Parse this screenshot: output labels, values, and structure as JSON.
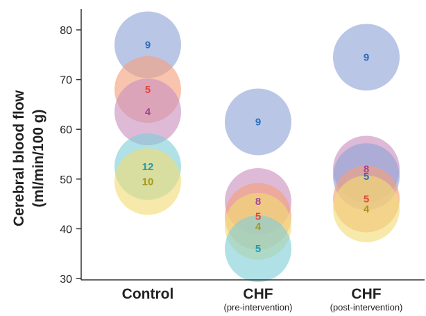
{
  "chart_data": {
    "type": "scatter",
    "title": "",
    "ylabel_line1": "Cerebral blood flow",
    "ylabel_line2": "(ml/min/100 g)",
    "ylim": [
      30,
      85
    ],
    "yticks": [
      30,
      40,
      50,
      60,
      70,
      80
    ],
    "grid": false,
    "categories": [
      {
        "label": "Control",
        "sublabel": ""
      },
      {
        "label": "CHF",
        "sublabel": "(pre-intervention)"
      },
      {
        "label": "CHF",
        "sublabel": "(post-intervention)"
      }
    ],
    "series": [
      {
        "group": "Control",
        "y": 77,
        "label": "9",
        "fill": "#8fa3d6",
        "text": "#2a6fc0"
      },
      {
        "group": "Control",
        "y": 68,
        "label": "5",
        "fill": "#f5a07a",
        "text": "#e2453a"
      },
      {
        "group": "Control",
        "y": 63.5,
        "label": "4",
        "fill": "#c98fbf",
        "text": "#a3439a"
      },
      {
        "group": "Control",
        "y": 52.5,
        "label": "12",
        "fill": "#7fcfd8",
        "text": "#1f9bab"
      },
      {
        "group": "Control",
        "y": 49.5,
        "label": "10",
        "fill": "#f1dc74",
        "text": "#a8951a"
      },
      {
        "group": "CHF (pre-intervention)",
        "y": 61.5,
        "label": "9",
        "fill": "#8fa3d6",
        "text": "#2a6fc0"
      },
      {
        "group": "CHF (pre-intervention)",
        "y": 45.5,
        "label": "8",
        "fill": "#c98fbf",
        "text": "#a3439a"
      },
      {
        "group": "CHF (pre-intervention)",
        "y": 42.5,
        "label": "5",
        "fill": "#f5a07a",
        "text": "#e2453a"
      },
      {
        "group": "CHF (pre-intervention)",
        "y": 40.5,
        "label": "4",
        "fill": "#f1dc74",
        "text": "#a8951a"
      },
      {
        "group": "CHF (pre-intervention)",
        "y": 36,
        "label": "5",
        "fill": "#7fcfd8",
        "text": "#1f9bab"
      },
      {
        "group": "CHF (post-intervention)",
        "y": 74.5,
        "label": "9",
        "fill": "#8fa3d6",
        "text": "#2a6fc0"
      },
      {
        "group": "CHF (post-intervention)",
        "y": 52,
        "label": "8",
        "fill": "#c98fbf",
        "text": "#a3439a"
      },
      {
        "group": "CHF (post-intervention)",
        "y": 50.5,
        "label": "5",
        "fill": "#8fa3d6",
        "text": "#2a6fc0"
      },
      {
        "group": "CHF (post-intervention)",
        "y": 46,
        "label": "5",
        "fill": "#f5a07a",
        "text": "#e2453a"
      },
      {
        "group": "CHF (post-intervention)",
        "y": 44,
        "label": "4",
        "fill": "#f1dc74",
        "text": "#a8951a"
      }
    ]
  }
}
